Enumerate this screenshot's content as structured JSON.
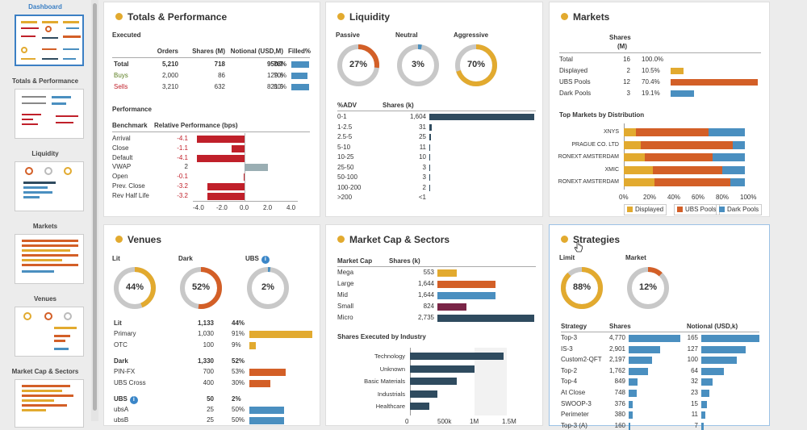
{
  "colors": {
    "gold": "#e2aa2f",
    "orange": "#d35f27",
    "blue": "#4a8fc0",
    "navy": "#2f4b5f",
    "red": "#c0202a",
    "plum": "#7a2547",
    "grey": "#9aaeb3"
  },
  "sidebar": {
    "items": [
      {
        "label": "Dashboard",
        "active": true
      },
      {
        "label": "Totals & Performance"
      },
      {
        "label": "Liquidity"
      },
      {
        "label": "Markets"
      },
      {
        "label": "Venues"
      },
      {
        "label": "Market Cap & Sectors"
      }
    ]
  },
  "totals": {
    "title": "Totals & Performance",
    "executed_label": "Executed",
    "headers": [
      "Orders",
      "Shares (M)",
      "Notional (USD,M)",
      "Filled%"
    ],
    "rows": [
      {
        "label": "Total",
        "orders": "5,210",
        "shares": "718",
        "notional": "950.7",
        "filled": "78%",
        "filled_pct": 78
      },
      {
        "label": "Buys",
        "orders": "2,000",
        "shares": "86",
        "notional": "129.6",
        "filled": "70%",
        "filled_pct": 70
      },
      {
        "label": "Sells",
        "orders": "3,210",
        "shares": "632",
        "notional": "821.0",
        "filled": "80%",
        "filled_pct": 80
      }
    ],
    "performance_label": "Performance",
    "perf_headers": [
      "Benchmark",
      "Relative Performance (bps)"
    ],
    "perf_rows": [
      {
        "label": "Arrival",
        "value": "-4.1",
        "v": -4.1
      },
      {
        "label": "Close",
        "value": "-1.1",
        "v": -1.1
      },
      {
        "label": "Default",
        "value": "-4.1",
        "v": -4.1
      },
      {
        "label": "VWAP",
        "value": "2",
        "v": 2
      },
      {
        "label": "Open",
        "value": "-0.1",
        "v": -0.1
      },
      {
        "label": "Prev. Close",
        "value": "-3.2",
        "v": -3.2
      },
      {
        "label": "Rev Half Life",
        "value": "-3.2",
        "v": -3.2
      }
    ],
    "perf_ticks": [
      "-4.0",
      "-2.0",
      "0.0",
      "2.0",
      "4.0"
    ]
  },
  "liquidity": {
    "title": "Liquidity",
    "gauges": [
      {
        "label": "Passive",
        "value": "27%",
        "pct": 27,
        "color": "#d35f27"
      },
      {
        "label": "Neutral",
        "value": "3%",
        "pct": 3,
        "color": "#4a8fc0"
      },
      {
        "label": "Aggressive",
        "value": "70%",
        "pct": 70,
        "color": "#e2aa2f"
      }
    ],
    "headers": [
      "%ADV",
      "Shares (k)"
    ],
    "rows": [
      {
        "label": "0-1",
        "value": "1,604",
        "v": 1604
      },
      {
        "label": "1-2.5",
        "value": "31",
        "v": 31
      },
      {
        "label": "2.5-5",
        "value": "25",
        "v": 25
      },
      {
        "label": "5-10",
        "value": "11",
        "v": 11
      },
      {
        "label": "10-25",
        "value": "10",
        "v": 10
      },
      {
        "label": "25-50",
        "value": "3",
        "v": 3
      },
      {
        "label": "50-100",
        "value": "3",
        "v": 3
      },
      {
        "label": "100-200",
        "value": "2",
        "v": 2
      },
      {
        "label": ">200",
        "value": "<1",
        "v": 0
      }
    ]
  },
  "markets": {
    "title": "Markets",
    "headers": [
      "Shares",
      "(M)"
    ],
    "rows": [
      {
        "label": "Total",
        "shares": "16",
        "pct": "100.0%",
        "p": 0,
        "color": ""
      },
      {
        "label": "Displayed",
        "shares": "2",
        "pct": "10.5%",
        "p": 10.5,
        "color": "#e2aa2f"
      },
      {
        "label": "UBS Pools",
        "shares": "12",
        "pct": "70.4%",
        "p": 70.4,
        "color": "#d35f27"
      },
      {
        "label": "Dark Pools",
        "shares": "3",
        "pct": "19.1%",
        "p": 19.1,
        "color": "#4a8fc0"
      }
    ],
    "top_label": "Top Markets by Distribution",
    "top_rows": [
      {
        "label": "XNYS",
        "d": 10,
        "u": 60,
        "k": 30
      },
      {
        "label": "PRAGUE CO. LTD",
        "d": 14,
        "u": 76,
        "k": 10
      },
      {
        "label": "RONEXT AMSTERDAM",
        "d": 17,
        "u": 56,
        "k": 27
      },
      {
        "label": "XMIC",
        "d": 24,
        "u": 57,
        "k": 19
      },
      {
        "label": "RONEXT AMSTERDAM",
        "d": 25,
        "u": 63,
        "k": 12
      }
    ],
    "ticks": [
      "0%",
      "20%",
      "40%",
      "60%",
      "80%",
      "100%"
    ],
    "legend": [
      "Displayed",
      "UBS Pools",
      "Dark Pools"
    ]
  },
  "venues": {
    "title": "Venues",
    "gauges": [
      {
        "label": "Lit",
        "value": "44%",
        "pct": 44,
        "color": "#e2aa2f"
      },
      {
        "label": "Dark",
        "value": "52%",
        "pct": 52,
        "color": "#d35f27"
      },
      {
        "label": "UBS",
        "value": "2%",
        "pct": 2,
        "color": "#4a8fc0",
        "info": true
      }
    ],
    "rows": [
      {
        "label": "Lit",
        "a": "1,133",
        "b": "44%",
        "bold": true,
        "p": 0,
        "color": ""
      },
      {
        "label": "Primary",
        "a": "1,030",
        "b": "91%",
        "p": 91,
        "color": "#e2aa2f"
      },
      {
        "label": "OTC",
        "a": "100",
        "b": "9%",
        "p": 9,
        "color": "#e2aa2f"
      },
      {
        "label": "Dark",
        "a": "1,330",
        "b": "52%",
        "bold": true,
        "p": 0,
        "color": ""
      },
      {
        "label": "PIN-FX",
        "a": "700",
        "b": "53%",
        "p": 53,
        "color": "#d35f27"
      },
      {
        "label": "UBS Cross",
        "a": "400",
        "b": "30%",
        "p": 30,
        "color": "#d35f27"
      },
      {
        "label": "UBS",
        "a": "50",
        "b": "2%",
        "bold": true,
        "info": true,
        "p": 0,
        "color": ""
      },
      {
        "label": "ubsA",
        "a": "25",
        "b": "50%",
        "p": 50,
        "color": "#4a8fc0"
      },
      {
        "label": "ubsB",
        "a": "25",
        "b": "50%",
        "p": 50,
        "color": "#4a8fc0"
      }
    ]
  },
  "mcap": {
    "title": "Market Cap & Sectors",
    "headers": [
      "Market Cap",
      "Shares (k)"
    ],
    "rows": [
      {
        "label": "Mega",
        "value": "553",
        "v": 553,
        "color": "#e2aa2f"
      },
      {
        "label": "Large",
        "value": "1,644",
        "v": 1644,
        "color": "#d35f27"
      },
      {
        "label": "Mid",
        "value": "1,644",
        "v": 1644,
        "color": "#4a8fc0"
      },
      {
        "label": "Small",
        "value": "824",
        "v": 824,
        "color": "#7a2547"
      },
      {
        "label": "Micro",
        "value": "2,735",
        "v": 2735,
        "color": "#2f4b5f"
      }
    ],
    "industry_label": "Shares Executed by Industry",
    "industries": [
      {
        "label": "Technology",
        "v": 1.45
      },
      {
        "label": "Unknown",
        "v": 1.0
      },
      {
        "label": "Basic Materials",
        "v": 0.72
      },
      {
        "label": "Industrials",
        "v": 0.43
      },
      {
        "label": "Healthcare",
        "v": 0.3
      }
    ],
    "ticks": [
      "0",
      "500k",
      "1M",
      "1.5M"
    ]
  },
  "strategies": {
    "title": "Strategies",
    "gauges": [
      {
        "label": "Limit",
        "value": "88%",
        "pct": 88,
        "color": "#e2aa2f"
      },
      {
        "label": "Market",
        "value": "12%",
        "pct": 12,
        "color": "#d35f27"
      }
    ],
    "headers": [
      "Strategy",
      "Shares",
      "Notional (USD,k)"
    ],
    "rows": [
      {
        "label": "Top-3",
        "shares": "4,770",
        "s": 4770,
        "notional": "165",
        "n": 165
      },
      {
        "label": "IS-3",
        "shares": "2,901",
        "s": 2901,
        "notional": "127",
        "n": 127
      },
      {
        "label": "Custom2-QFT",
        "shares": "2,197",
        "s": 2197,
        "notional": "100",
        "n": 100
      },
      {
        "label": "Top-2",
        "shares": "1,762",
        "s": 1762,
        "notional": "64",
        "n": 64
      },
      {
        "label": "Top-4",
        "shares": "849",
        "s": 849,
        "notional": "32",
        "n": 32
      },
      {
        "label": "At Close",
        "shares": "748",
        "s": 748,
        "notional": "23",
        "n": 23
      },
      {
        "label": "SWOOP-3",
        "shares": "376",
        "s": 376,
        "notional": "15",
        "n": 15
      },
      {
        "label": "Perimeter",
        "shares": "380",
        "s": 380,
        "notional": "11",
        "n": 11
      },
      {
        "label": "Top-3 (A)",
        "shares": "160",
        "s": 160,
        "notional": "7",
        "n": 7
      }
    ]
  }
}
